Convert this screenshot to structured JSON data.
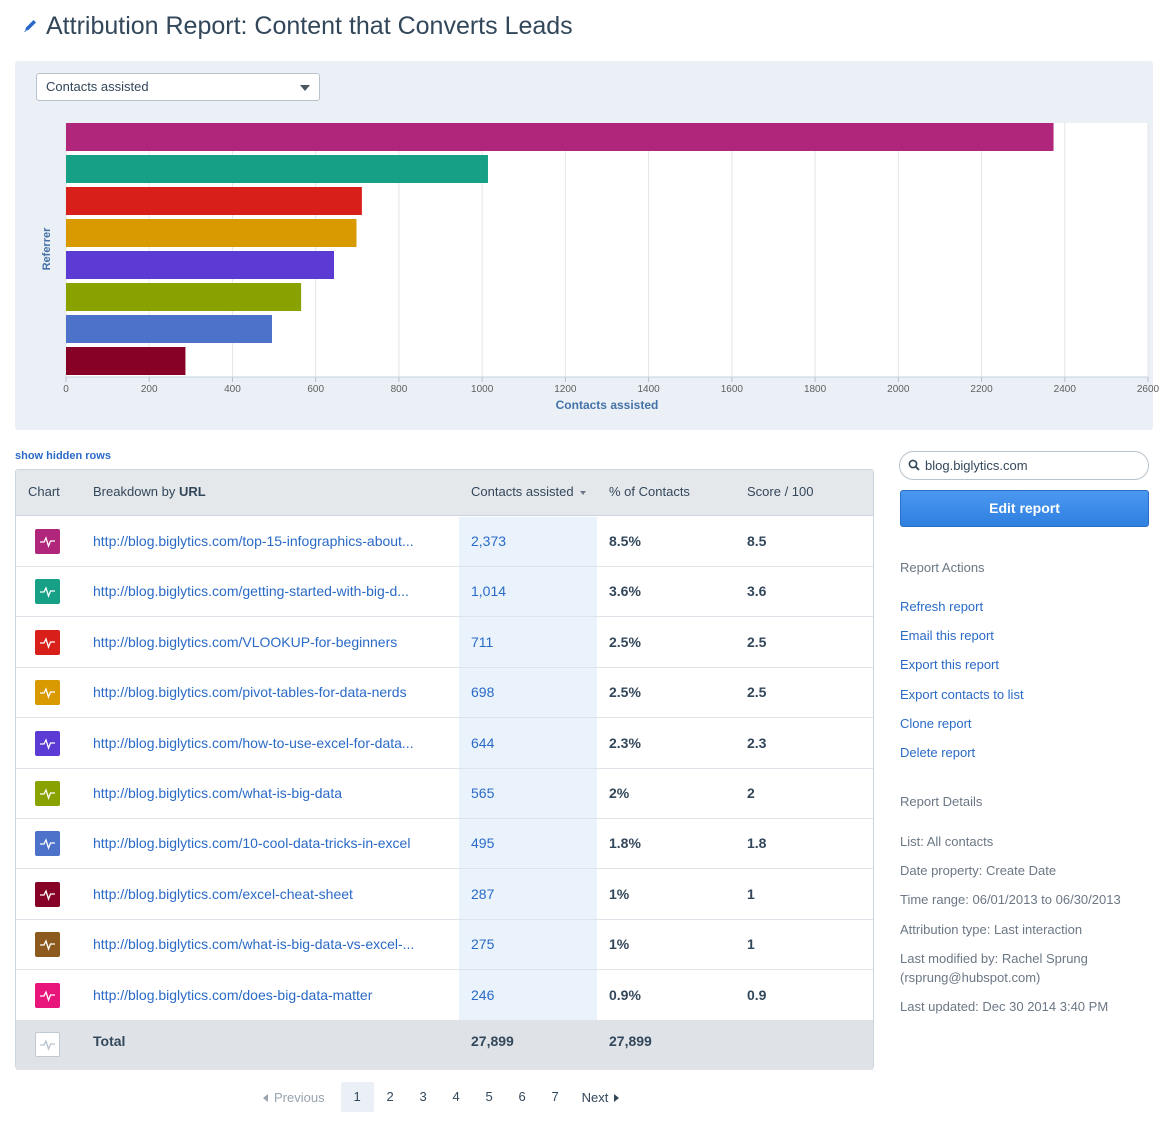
{
  "title": "Attribution Report: Content that Converts Leads",
  "metric_select": {
    "value": "Contacts assisted"
  },
  "chart_data": {
    "type": "bar",
    "orientation": "horizontal",
    "ylabel": "Referrer",
    "xlabel": "Contacts assisted",
    "xlim": [
      0,
      2600
    ],
    "xticks": [
      0,
      200,
      400,
      600,
      800,
      1000,
      1200,
      1400,
      1600,
      1800,
      2000,
      2200,
      2400,
      2600
    ],
    "values": [
      2373,
      1014,
      711,
      698,
      644,
      565,
      495,
      287
    ],
    "colors": [
      "#b0267b",
      "#16a085",
      "#d81f1a",
      "#d89a00",
      "#5b3bd3",
      "#8aa200",
      "#4c73c9",
      "#870025"
    ],
    "grid": "vertical",
    "legend": "none"
  },
  "show_hidden_label": "show hidden rows",
  "table": {
    "headers": {
      "chart": "Chart",
      "breakdown_prefix": "Breakdown by ",
      "breakdown_bold": "URL",
      "contacts_assisted": "Contacts assisted",
      "pct_contacts": "% of Contacts",
      "score": "Score / 100"
    },
    "rows": [
      {
        "url": "http://blog.biglytics.com/top-15-infographics-about...",
        "ca": "2,373",
        "pct": "8.5%",
        "score": "8.5",
        "color": "#b0267b"
      },
      {
        "url": "http://blog.biglytics.com/getting-started-with-big-d...",
        "ca": "1,014",
        "pct": "3.6%",
        "score": "3.6",
        "color": "#16a085"
      },
      {
        "url": "http://blog.biglytics.com/VLOOKUP-for-beginners",
        "ca": "711",
        "pct": "2.5%",
        "score": "2.5",
        "color": "#d81f1a"
      },
      {
        "url": "http://blog.biglytics.com/pivot-tables-for-data-nerds",
        "ca": "698",
        "pct": "2.5%",
        "score": "2.5",
        "color": "#d89a00"
      },
      {
        "url": "http://blog.biglytics.com/how-to-use-excel-for-data...",
        "ca": "644",
        "pct": "2.3%",
        "score": "2.3",
        "color": "#5b3bd3"
      },
      {
        "url": "http://blog.biglytics.com/what-is-big-data",
        "ca": "565",
        "pct": "2%",
        "score": "2",
        "color": "#8aa200"
      },
      {
        "url": "http://blog.biglytics.com/10-cool-data-tricks-in-excel",
        "ca": "495",
        "pct": "1.8%",
        "score": "1.8",
        "color": "#4c73c9"
      },
      {
        "url": "http://blog.biglytics.com/excel-cheat-sheet",
        "ca": "287",
        "pct": "1%",
        "score": "1",
        "color": "#870025"
      },
      {
        "url": "http://blog.biglytics.com/what-is-big-data-vs-excel-...",
        "ca": "275",
        "pct": "1%",
        "score": "1",
        "color": "#8c5a1e"
      },
      {
        "url": "http://blog.biglytics.com/does-big-data-matter",
        "ca": "246",
        "pct": "0.9%",
        "score": "0.9",
        "color": "#e8157a"
      }
    ],
    "total": {
      "label": "Total",
      "contacts_assisted": "27,899",
      "pct_contacts": "27,899"
    }
  },
  "pagination": {
    "previous": "Previous",
    "next": "Next",
    "pages": [
      "1",
      "2",
      "3",
      "4",
      "5",
      "6",
      "7"
    ],
    "current": "1"
  },
  "sidebar": {
    "search_value": "blog.biglytics.com",
    "edit_button": "Edit report",
    "actions_heading": "Report Actions",
    "actions": [
      "Refresh report",
      "Email this report",
      "Export this report",
      "Export contacts to list",
      "Clone report",
      "Delete report"
    ],
    "details_heading": "Report Details",
    "details": [
      "List: All contacts",
      "Date property: Create Date",
      "Time range: 06/01/2013 to 06/30/2013",
      "Attribution type: Last interaction",
      "Last modified by: Rachel Sprung (rsprung@hubspot.com)",
      "Last updated: Dec 30 2014 3:40 PM"
    ]
  }
}
